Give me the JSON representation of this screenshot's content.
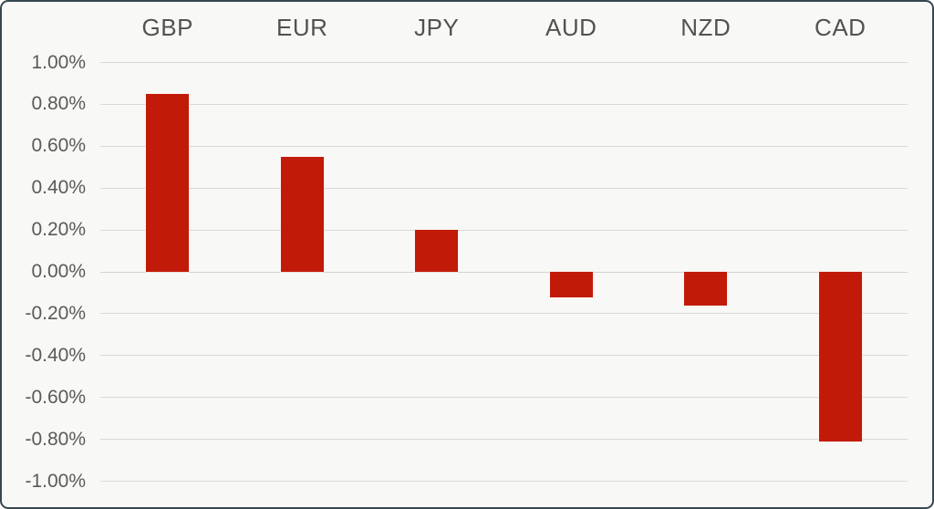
{
  "chart_data": {
    "type": "bar",
    "categories": [
      "GBP",
      "EUR",
      "JPY",
      "AUD",
      "NZD",
      "CAD"
    ],
    "values": [
      0.85,
      0.55,
      0.2,
      -0.12,
      -0.16,
      -0.81
    ],
    "value_unit": "%",
    "title": "",
    "xlabel": "",
    "ylabel": "",
    "ylim": [
      -1.0,
      1.0
    ],
    "yticks": [
      {
        "value": 1.0,
        "label": "1.00%"
      },
      {
        "value": 0.8,
        "label": "0.80%"
      },
      {
        "value": 0.6,
        "label": "0.60%"
      },
      {
        "value": 0.4,
        "label": "0.40%"
      },
      {
        "value": 0.2,
        "label": "0.20%"
      },
      {
        "value": 0.0,
        "label": "0.00%"
      },
      {
        "value": -0.2,
        "label": "-0.20%"
      },
      {
        "value": -0.4,
        "label": "-0.40%"
      },
      {
        "value": -0.6,
        "label": "-0.60%"
      },
      {
        "value": -0.8,
        "label": "-0.80%"
      },
      {
        "value": -1.0,
        "label": "-1.00%"
      }
    ],
    "grid": true,
    "legend": false,
    "category_label_position": "top"
  },
  "colors": {
    "bar": "#c21a08",
    "gridline": "#d9d9d9",
    "zero_gridline": "#d2d2d2",
    "tick_label_text": "#5a5a5a",
    "category_label_text": "#525252",
    "background": "#f8f8f6",
    "frame_border": "#37474f"
  }
}
